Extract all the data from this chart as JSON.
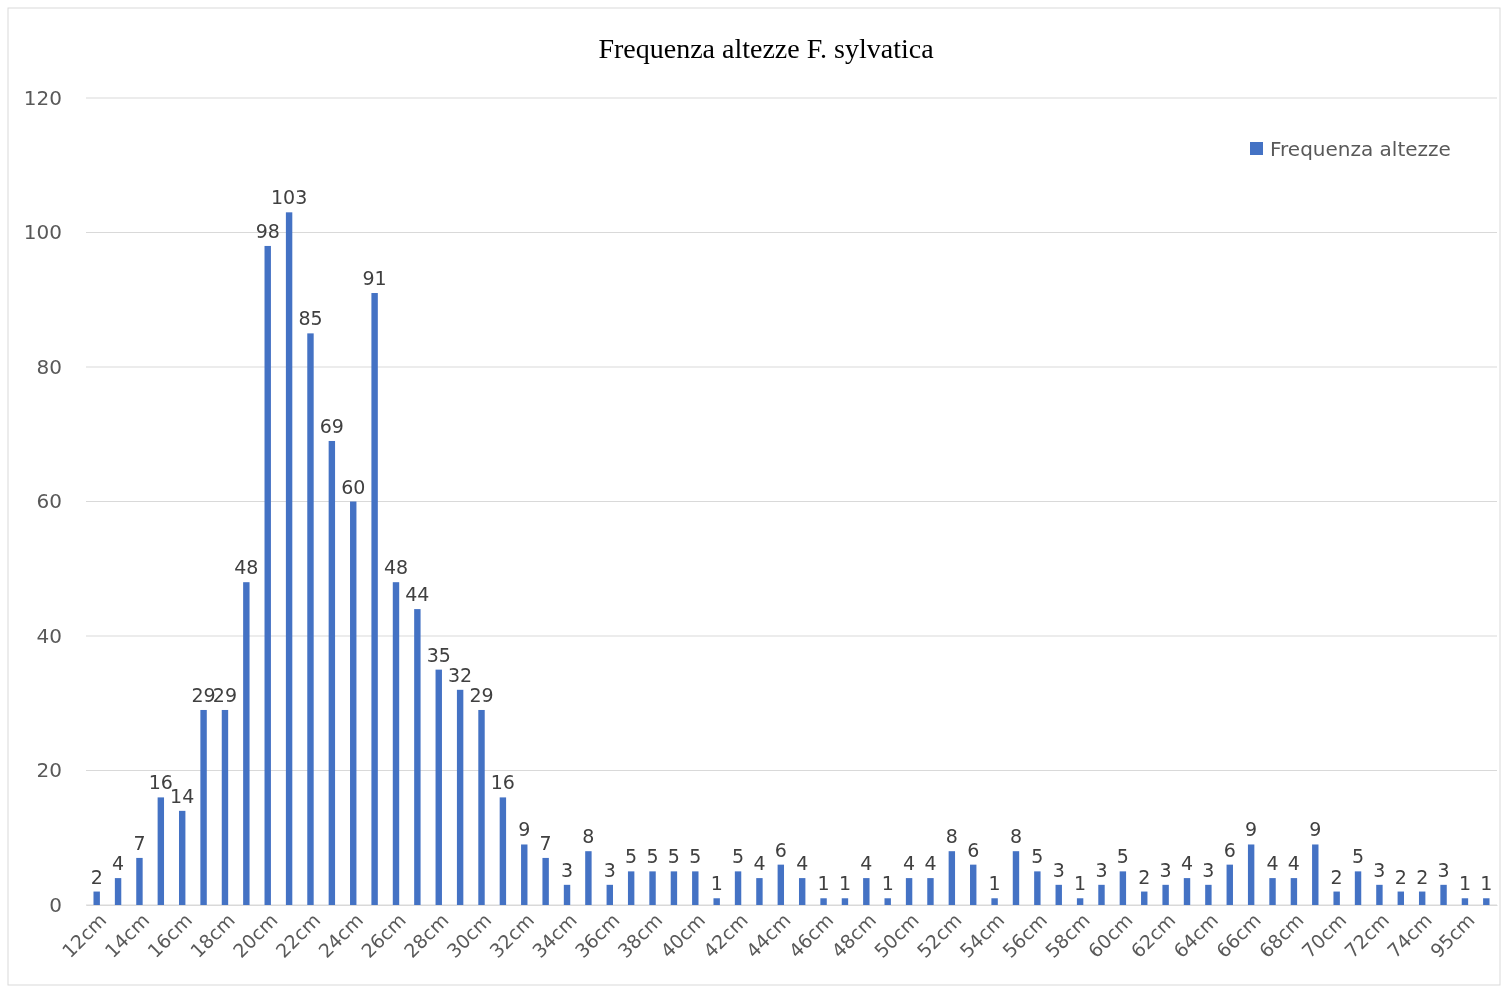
{
  "chart_data": {
    "type": "bar",
    "title": "Frequenza altezze F. sylvatica",
    "categories": [
      "12cm",
      null,
      "14cm",
      null,
      "16cm",
      null,
      "18cm",
      null,
      "20cm",
      null,
      "22cm",
      null,
      "24cm",
      null,
      "26cm",
      null,
      "28cm",
      null,
      "30cm",
      null,
      "32cm",
      null,
      "34cm",
      null,
      "36cm",
      null,
      "38cm",
      null,
      "40cm",
      null,
      "42cm",
      null,
      "44cm",
      null,
      "46cm",
      null,
      "48cm",
      null,
      "50cm",
      null,
      "52cm",
      null,
      "54cm",
      null,
      "56cm",
      null,
      "58cm",
      null,
      "60cm",
      null,
      "62cm",
      null,
      "64cm",
      null,
      "66cm",
      null,
      "68cm",
      null,
      "70cm",
      null,
      "72cm",
      null,
      "74cm",
      null,
      "95cm",
      null
    ],
    "series": [
      {
        "name": "Frequenza altezze",
        "color": "#4472c4",
        "values": [
          2,
          4,
          7,
          16,
          14,
          29,
          29,
          48,
          98,
          103,
          85,
          69,
          60,
          91,
          48,
          44,
          35,
          32,
          29,
          16,
          9,
          7,
          3,
          8,
          3,
          5,
          5,
          5,
          5,
          1,
          5,
          4,
          6,
          4,
          1,
          1,
          4,
          1,
          4,
          4,
          8,
          6,
          1,
          8,
          5,
          3,
          1,
          3,
          5,
          2,
          3,
          4,
          3,
          6,
          9,
          4,
          4,
          9,
          2,
          5,
          3,
          2,
          2,
          3,
          1,
          1
        ]
      }
    ],
    "ylim": [
      0,
      120
    ],
    "yticks": [
      0,
      20,
      40,
      60,
      80,
      100,
      120
    ],
    "grid": "y",
    "legend": "top right",
    "data_labels": true
  }
}
